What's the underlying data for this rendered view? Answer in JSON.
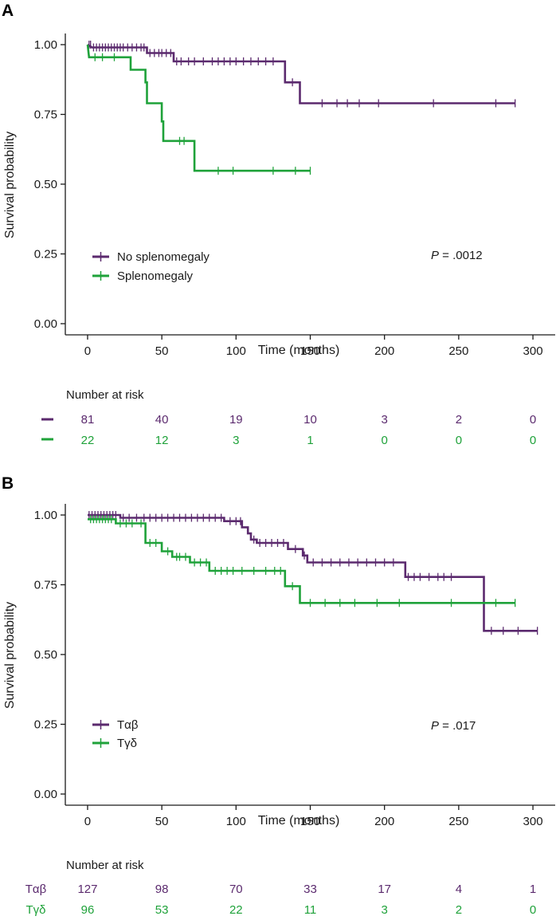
{
  "colors": {
    "purple": "#5b2a6e",
    "green": "#1fa23a",
    "axis": "#1a1a1a"
  },
  "chart_data": [
    {
      "type": "line",
      "panel_label": "A",
      "xlabel": "Time (months)",
      "ylabel": "Survival probability",
      "xlim": [
        -15,
        315
      ],
      "ylim": [
        -0.04,
        1.04
      ],
      "xticks": [
        "0",
        "50",
        "100",
        "150",
        "200",
        "250",
        "300"
      ],
      "yticks": [
        "0.00",
        "0.25",
        "0.50",
        "0.75",
        "1.00"
      ],
      "p_prefix": "P",
      "p_value": " = .0012",
      "risk_title": "Number at risk",
      "series": [
        {
          "name": "No splenomegaly",
          "risk_label": "",
          "color_key": "purple",
          "steps": [
            [
              0,
              1.0
            ],
            [
              3,
              0.99
            ],
            [
              40,
              0.99
            ],
            [
              40,
              0.97
            ],
            [
              58,
              0.97
            ],
            [
              58,
              0.94
            ],
            [
              133,
              0.94
            ],
            [
              133,
              0.865
            ],
            [
              143,
              0.865
            ],
            [
              143,
              0.79
            ],
            [
              288,
              0.79
            ]
          ],
          "censors": [
            1,
            2,
            4,
            6,
            8,
            10,
            12,
            14,
            16,
            18,
            20,
            22,
            24,
            27,
            30,
            33,
            36,
            38,
            42,
            45,
            48,
            50,
            53,
            56,
            60,
            63,
            68,
            72,
            78,
            84,
            88,
            92,
            96,
            100,
            105,
            110,
            115,
            120,
            125,
            138,
            158,
            168,
            175,
            183,
            196,
            233,
            275,
            288
          ],
          "risk": [
            "81",
            "40",
            "19",
            "10",
            "3",
            "2",
            "0"
          ]
        },
        {
          "name": "Splenomegaly",
          "risk_label": "",
          "color_key": "green",
          "steps": [
            [
              0,
              1.0
            ],
            [
              1,
              0.955
            ],
            [
              29,
              0.955
            ],
            [
              29,
              0.91
            ],
            [
              39,
              0.91
            ],
            [
              39,
              0.865
            ],
            [
              40,
              0.865
            ],
            [
              40,
              0.79
            ],
            [
              50,
              0.79
            ],
            [
              50,
              0.725
            ],
            [
              51,
              0.725
            ],
            [
              51,
              0.655
            ],
            [
              72,
              0.655
            ],
            [
              72,
              0.548
            ],
            [
              150,
              0.548
            ]
          ],
          "censors": [
            5,
            10,
            18,
            62,
            65,
            88,
            98,
            125,
            140,
            150
          ],
          "risk": [
            "22",
            "12",
            "3",
            "1",
            "0",
            "0",
            "0"
          ]
        }
      ]
    },
    {
      "type": "line",
      "panel_label": "B",
      "xlabel": "Time (months)",
      "ylabel": "Survival probability",
      "xlim": [
        -15,
        315
      ],
      "ylim": [
        -0.04,
        1.04
      ],
      "xticks": [
        "0",
        "50",
        "100",
        "150",
        "200",
        "250",
        "300"
      ],
      "yticks": [
        "0.00",
        "0.25",
        "0.50",
        "0.75",
        "1.00"
      ],
      "p_prefix": "P",
      "p_value": " = .017",
      "risk_title": "Number at risk",
      "series": [
        {
          "name": "Tαβ",
          "risk_label": "Tαβ",
          "color_key": "purple",
          "steps": [
            [
              0,
              1.0
            ],
            [
              22,
              1.0
            ],
            [
              22,
              0.99
            ],
            [
              92,
              0.99
            ],
            [
              92,
              0.978
            ],
            [
              104,
              0.978
            ],
            [
              104,
              0.956
            ],
            [
              108,
              0.956
            ],
            [
              108,
              0.934
            ],
            [
              110,
              0.934
            ],
            [
              110,
              0.912
            ],
            [
              114,
              0.912
            ],
            [
              114,
              0.9
            ],
            [
              135,
              0.9
            ],
            [
              135,
              0.878
            ],
            [
              145,
              0.878
            ],
            [
              145,
              0.855
            ],
            [
              148,
              0.855
            ],
            [
              148,
              0.83
            ],
            [
              214,
              0.83
            ],
            [
              214,
              0.778
            ],
            [
              267,
              0.778
            ],
            [
              267,
              0.585
            ],
            [
              303,
              0.585
            ]
          ],
          "censors": [
            1,
            3,
            5,
            7,
            9,
            11,
            13,
            15,
            17,
            19,
            24,
            28,
            33,
            38,
            42,
            46,
            50,
            54,
            58,
            62,
            66,
            70,
            74,
            78,
            82,
            86,
            90,
            96,
            100,
            103,
            112,
            116,
            120,
            124,
            128,
            132,
            140,
            146,
            152,
            158,
            164,
            170,
            176,
            182,
            188,
            194,
            200,
            206,
            216,
            220,
            224,
            230,
            236,
            240,
            245,
            272,
            280,
            290,
            303
          ],
          "risk": [
            "127",
            "98",
            "70",
            "33",
            "17",
            "4",
            "1"
          ]
        },
        {
          "name": "Tγδ",
          "risk_label": "Tγδ",
          "color_key": "green",
          "steps": [
            [
              0,
              0.985
            ],
            [
              19,
              0.985
            ],
            [
              19,
              0.97
            ],
            [
              39,
              0.97
            ],
            [
              39,
              0.9
            ],
            [
              50,
              0.9
            ],
            [
              50,
              0.87
            ],
            [
              57,
              0.87
            ],
            [
              57,
              0.85
            ],
            [
              69,
              0.85
            ],
            [
              69,
              0.83
            ],
            [
              82,
              0.83
            ],
            [
              82,
              0.8
            ],
            [
              133,
              0.8
            ],
            [
              133,
              0.745
            ],
            [
              143,
              0.745
            ],
            [
              143,
              0.685
            ],
            [
              288,
              0.685
            ]
          ],
          "censors": [
            2,
            4,
            6,
            8,
            10,
            12,
            14,
            16,
            22,
            26,
            30,
            36,
            42,
            46,
            54,
            60,
            62,
            66,
            72,
            76,
            80,
            86,
            90,
            94,
            98,
            104,
            112,
            120,
            126,
            130,
            138,
            150,
            160,
            170,
            180,
            195,
            210,
            245,
            275,
            288
          ],
          "risk": [
            "96",
            "53",
            "22",
            "11",
            "3",
            "2",
            "0"
          ]
        }
      ]
    }
  ]
}
